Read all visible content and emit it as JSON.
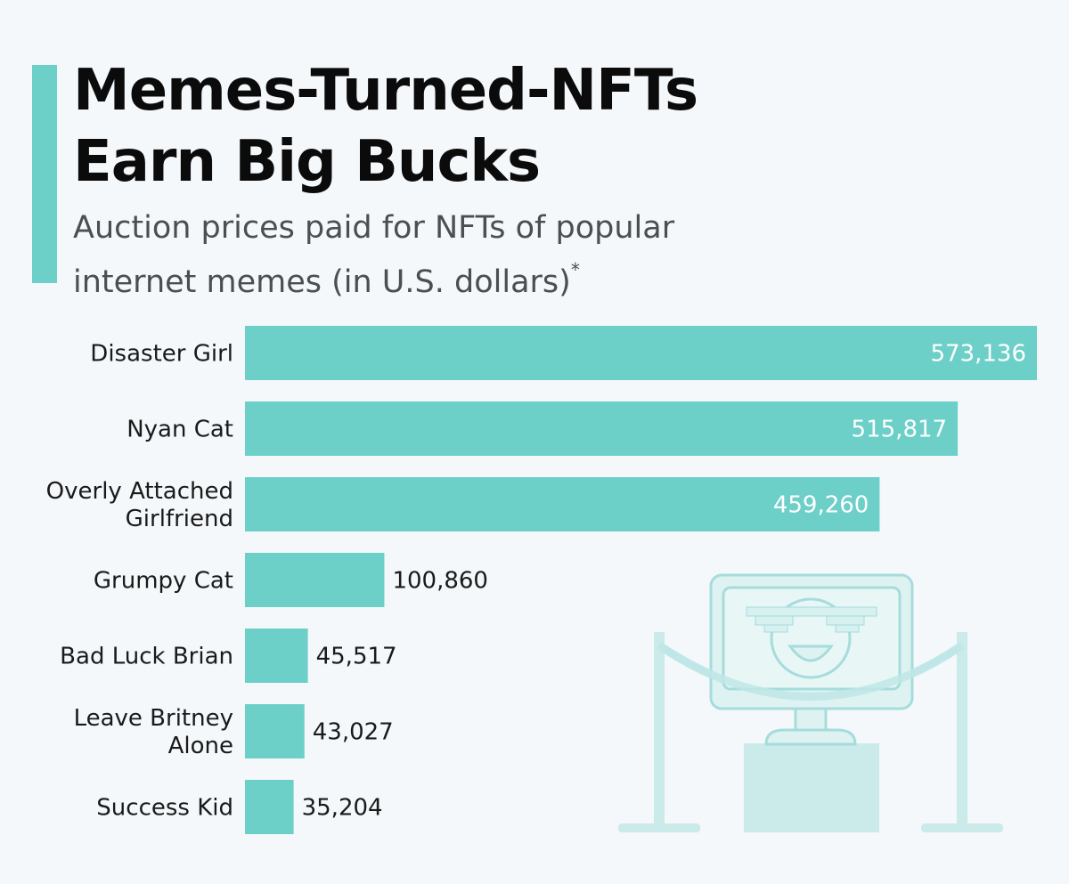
{
  "header": {
    "title": "Memes-Turned-NFTs\nEarn Big Bucks",
    "subtitle": "Auction prices paid for NFTs of popular internet memes (in U.S. dollars)",
    "subtitle_mark": "*"
  },
  "colors": {
    "accent": "#6ccfc8",
    "illustration": "#bfe6e6"
  },
  "illustration": {
    "icon": "museum-monitor-meme-icon"
  },
  "chart_data": {
    "type": "bar",
    "orientation": "horizontal",
    "categories": [
      "Disaster Girl",
      "Nyan Cat",
      "Overly Attached Girlfriend",
      "Grumpy Cat",
      "Bad Luck Brian",
      "Leave Britney Alone",
      "Success Kid"
    ],
    "category_lines": [
      [
        "Disaster Girl"
      ],
      [
        "Nyan Cat"
      ],
      [
        "Overly Attached",
        "Girlfriend"
      ],
      [
        "Grumpy Cat"
      ],
      [
        "Bad Luck Brian"
      ],
      [
        "Leave Britney",
        "Alone"
      ],
      [
        "Success Kid"
      ]
    ],
    "values": [
      573136,
      515817,
      459260,
      100860,
      45517,
      43027,
      35204
    ],
    "value_labels": [
      "573,136",
      "515,817",
      "459,260",
      "100,860",
      "45,517",
      "43,027",
      "35,204"
    ],
    "xlim": [
      0,
      573136
    ],
    "color": "#6ccfc8",
    "grid": false,
    "legend": "none"
  }
}
